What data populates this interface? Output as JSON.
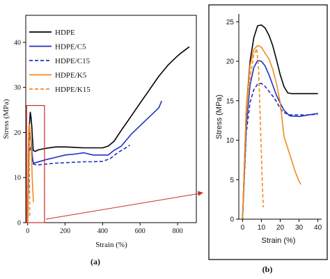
{
  "colors": {
    "hdpe": "#000000",
    "c_series": "#1f2fbf",
    "k_series": "#f28a1e",
    "zoom_box": "#d02a2a"
  },
  "panel_a": {
    "caption": "(a)",
    "legend": [
      "HDPE",
      "HDPE/C5",
      "HDPE/C15",
      "HDPE/K5",
      "HDPE/K15"
    ]
  },
  "panel_b": {
    "caption": "(b)"
  },
  "chart_data": [
    {
      "type": "line",
      "panel": "a",
      "xlabel": "Strain (%)",
      "ylabel": "Stress (MPa)",
      "xlim": [
        -10,
        900
      ],
      "ylim": [
        0,
        46
      ],
      "xticks": [
        0,
        200,
        400,
        600,
        800
      ],
      "yticks": [
        0,
        10,
        20,
        30,
        40
      ],
      "grid": false,
      "legend_position": "top-left",
      "series": [
        {
          "name": "HDPE",
          "style": "solid",
          "color": "#000000",
          "x": [
            0,
            5,
            10,
            14,
            18,
            22,
            26,
            30,
            40,
            60,
            100,
            150,
            200,
            250,
            300,
            350,
            400,
            430,
            460,
            500,
            550,
            600,
            650,
            700,
            750,
            800,
            830,
            862
          ],
          "y": [
            0,
            14,
            22,
            24.5,
            23.5,
            21.5,
            18.5,
            16.0,
            15.8,
            16.2,
            16.5,
            16.8,
            16.8,
            16.7,
            16.6,
            16.6,
            16.6,
            17.0,
            18.0,
            20.5,
            23.5,
            26.5,
            29.5,
            32.5,
            35.0,
            37.0,
            38.0,
            39.0
          ]
        },
        {
          "name": "HDPE/C5",
          "style": "solid",
          "color": "#1f2fbf",
          "x": [
            0,
            4,
            8,
            12,
            18,
            24,
            30,
            50,
            100,
            150,
            200,
            250,
            300,
            350,
            400,
            430,
            460,
            500,
            550,
            600,
            650,
            700,
            715
          ],
          "y": [
            0,
            12,
            18,
            20.0,
            18.5,
            15.0,
            13.2,
            13.4,
            14.0,
            14.5,
            15.0,
            15.2,
            15.5,
            15.0,
            15.0,
            15.0,
            16.0,
            17.0,
            19.5,
            21.5,
            23.5,
            25.5,
            27.0
          ]
        },
        {
          "name": "HDPE/C15",
          "style": "dashed",
          "color": "#1f2fbf",
          "x": [
            0,
            4,
            8,
            12,
            18,
            24,
            30,
            50,
            100,
            150,
            200,
            250,
            300,
            350,
            400,
            440,
            480,
            520,
            545
          ],
          "y": [
            0,
            11,
            15.5,
            17.0,
            16.0,
            14.0,
            13.0,
            12.8,
            13.0,
            13.2,
            13.3,
            13.4,
            13.5,
            13.5,
            13.6,
            14.2,
            15.5,
            16.5,
            17.2
          ]
        },
        {
          "name": "HDPE/K5",
          "style": "solid",
          "color": "#f28a1e",
          "x": [
            0,
            3,
            6,
            9,
            12,
            16,
            20,
            24,
            28,
            31
          ],
          "y": [
            0,
            16,
            21.5,
            21.8,
            21.0,
            19.0,
            16.0,
            10.0,
            7.0,
            4.5
          ]
        },
        {
          "name": "HDPE/K15",
          "style": "dashed",
          "color": "#f28a1e",
          "x": [
            0,
            3,
            6,
            8,
            9.5,
            11
          ],
          "y": [
            0,
            15,
            20,
            21.5,
            10,
            1.5
          ]
        }
      ],
      "annotation": {
        "zoom_box_x": [
          -5,
          90
        ],
        "zoom_box_y": [
          0,
          26
        ],
        "links_to": "panel_b"
      }
    },
    {
      "type": "line",
      "panel": "b",
      "xlabel": "Strain (%)",
      "ylabel": "Stress (MPa)",
      "xlim": [
        -2,
        42
      ],
      "ylim": [
        0,
        26
      ],
      "xticks": [
        0,
        10,
        20,
        30,
        40
      ],
      "yticks": [
        0,
        5,
        10,
        15,
        20,
        25
      ],
      "grid": false,
      "series": [
        {
          "name": "HDPE",
          "style": "solid",
          "color": "#000000",
          "x": [
            0,
            2,
            4,
            6,
            8,
            10,
            12,
            14,
            16,
            18,
            20,
            22,
            24,
            26,
            30,
            35,
            40
          ],
          "y": [
            0,
            14,
            20,
            23,
            24.5,
            24.6,
            24.2,
            23.3,
            22.0,
            20.2,
            18.3,
            16.8,
            16.0,
            15.9,
            15.9,
            15.9,
            15.9
          ]
        },
        {
          "name": "HDPE/C5",
          "style": "solid",
          "color": "#1f2fbf",
          "x": [
            0,
            2,
            4,
            6,
            8,
            10,
            12,
            14,
            16,
            18,
            20,
            22,
            25,
            30,
            35,
            40
          ],
          "y": [
            0,
            12,
            17,
            19.2,
            20.1,
            20.0,
            19.4,
            18.3,
            17.0,
            15.7,
            14.7,
            13.8,
            13.1,
            13.0,
            13.2,
            13.4
          ]
        },
        {
          "name": "HDPE/C15",
          "style": "dashed",
          "color": "#1f2fbf",
          "x": [
            0,
            2,
            4,
            6,
            8,
            10,
            12,
            14,
            16,
            18,
            20,
            22,
            25,
            30,
            35,
            40
          ],
          "y": [
            0,
            11,
            14.8,
            16.4,
            17.1,
            17.2,
            16.8,
            16.2,
            15.6,
            14.9,
            14.0,
            13.5,
            13.2,
            13.2,
            13.2,
            13.3
          ]
        },
        {
          "name": "HDPE/K5",
          "style": "solid",
          "color": "#f28a1e",
          "x": [
            0,
            2,
            4,
            6,
            8,
            10,
            12,
            14,
            16,
            18,
            20,
            22,
            24,
            26,
            28,
            30,
            31
          ],
          "y": [
            0,
            14,
            19.5,
            21.5,
            22.0,
            21.8,
            21.0,
            20.3,
            19.0,
            17.2,
            14.8,
            10.5,
            9.0,
            7.5,
            6.0,
            4.8,
            4.4
          ]
        },
        {
          "name": "HDPE/K15",
          "style": "dashed",
          "color": "#f28a1e",
          "x": [
            0,
            2,
            4,
            6,
            7.5,
            8.5,
            9.5,
            10.5,
            11
          ],
          "y": [
            0,
            13,
            18,
            20.8,
            21.6,
            19.0,
            12.0,
            4.5,
            1.5
          ]
        }
      ]
    }
  ]
}
